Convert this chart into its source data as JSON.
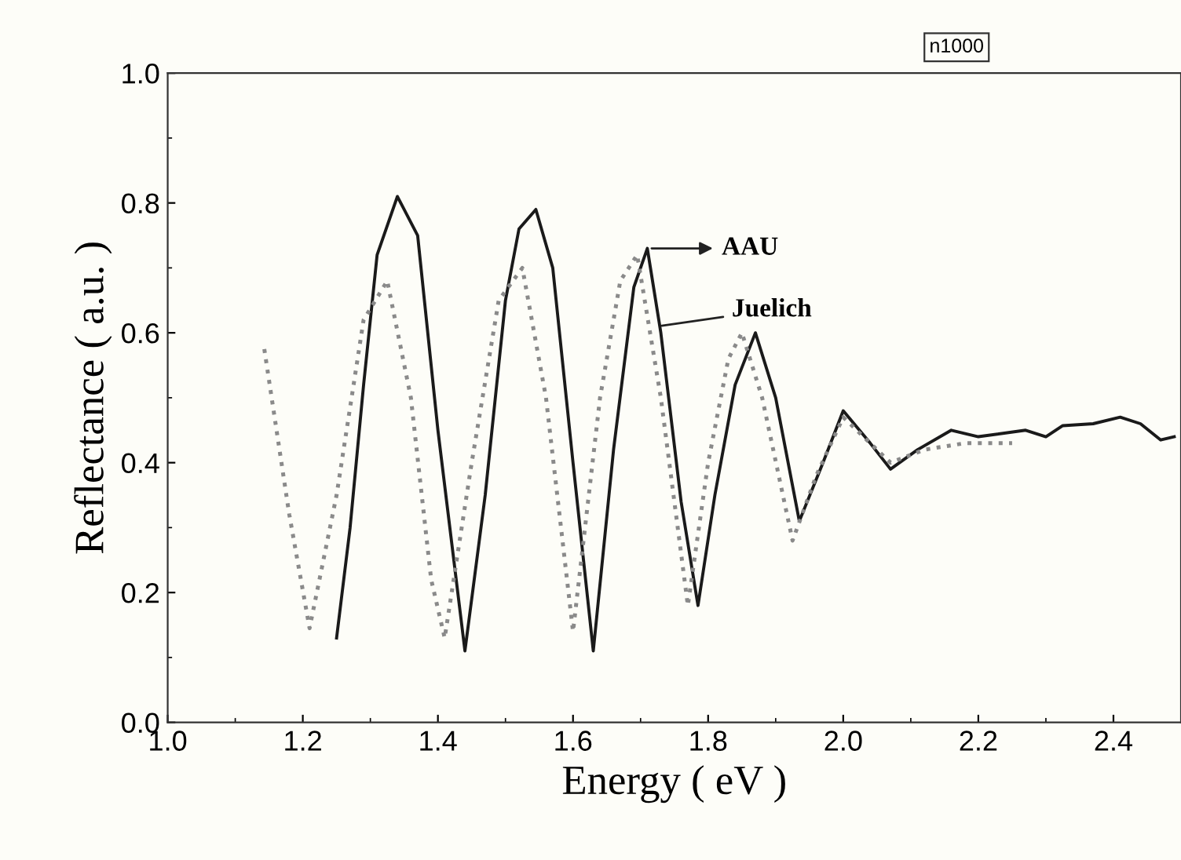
{
  "chart_data": {
    "type": "line",
    "xlabel": "Energy ( eV )",
    "ylabel": "Reflectance ( a.u. )",
    "xlim": [
      1.0,
      2.5
    ],
    "ylim": [
      0.0,
      1.0
    ],
    "xticks": [
      {
        "value": 1.0,
        "label": "1.0"
      },
      {
        "value": 1.2,
        "label": "1.2"
      },
      {
        "value": 1.4,
        "label": "1.4"
      },
      {
        "value": 1.6,
        "label": "1.6"
      },
      {
        "value": 1.8,
        "label": "1.8"
      },
      {
        "value": 2.0,
        "label": "2.0"
      },
      {
        "value": 2.2,
        "label": "2.2"
      },
      {
        "value": 2.4,
        "label": "2.4"
      }
    ],
    "yticks": [
      {
        "value": 0.0,
        "label": "0.0"
      },
      {
        "value": 0.2,
        "label": "0.2"
      },
      {
        "value": 0.4,
        "label": "0.4"
      },
      {
        "value": 0.6,
        "label": "0.6"
      },
      {
        "value": 0.8,
        "label": "0.8"
      },
      {
        "value": 1.0,
        "label": "1.0"
      }
    ],
    "grid": false,
    "legend": false,
    "series": [
      {
        "color": "#1a1a1a",
        "line_style": "solid",
        "x": [
          1.25,
          1.27,
          1.29,
          1.31,
          1.34,
          1.37,
          1.4,
          1.44,
          1.47,
          1.5,
          1.52,
          1.545,
          1.57,
          1.6,
          1.63,
          1.66,
          1.69,
          1.71,
          1.73,
          1.76,
          1.785,
          1.81,
          1.84,
          1.87,
          1.9,
          1.935,
          1.97,
          2.0,
          2.04,
          2.07,
          2.11,
          2.16,
          2.2,
          2.27,
          2.3,
          2.325,
          2.37,
          2.41,
          2.44,
          2.47,
          2.49
        ],
        "values": [
          0.13,
          0.3,
          0.52,
          0.72,
          0.81,
          0.75,
          0.45,
          0.11,
          0.35,
          0.65,
          0.76,
          0.79,
          0.7,
          0.4,
          0.11,
          0.42,
          0.67,
          0.73,
          0.6,
          0.34,
          0.18,
          0.35,
          0.52,
          0.6,
          0.5,
          0.31,
          0.4,
          0.48,
          0.43,
          0.39,
          0.42,
          0.45,
          0.44,
          0.45,
          0.44,
          0.457,
          0.46,
          0.47,
          0.46,
          0.435,
          0.44
        ]
      },
      {
        "color": "#8a8a8a",
        "line_style": "dotted",
        "x": [
          1.143,
          1.18,
          1.21,
          1.25,
          1.29,
          1.325,
          1.36,
          1.39,
          1.41,
          1.45,
          1.49,
          1.525,
          1.56,
          1.6,
          1.64,
          1.67,
          1.695,
          1.73,
          1.77,
          1.8,
          1.83,
          1.85,
          1.88,
          1.925,
          1.96,
          2.0,
          2.04,
          2.07,
          2.12,
          2.18,
          2.25
        ],
        "values": [
          0.575,
          0.32,
          0.145,
          0.35,
          0.62,
          0.68,
          0.5,
          0.22,
          0.13,
          0.4,
          0.65,
          0.7,
          0.5,
          0.14,
          0.5,
          0.68,
          0.72,
          0.5,
          0.18,
          0.4,
          0.56,
          0.6,
          0.5,
          0.28,
          0.38,
          0.47,
          0.43,
          0.4,
          0.42,
          0.43,
          0.43
        ]
      }
    ],
    "annotations": [
      {
        "text": "AAU",
        "x": 1.71,
        "y": 0.73
      },
      {
        "text": "Juelich",
        "x": 1.725,
        "y": 0.61
      },
      "n1000"
    ]
  }
}
